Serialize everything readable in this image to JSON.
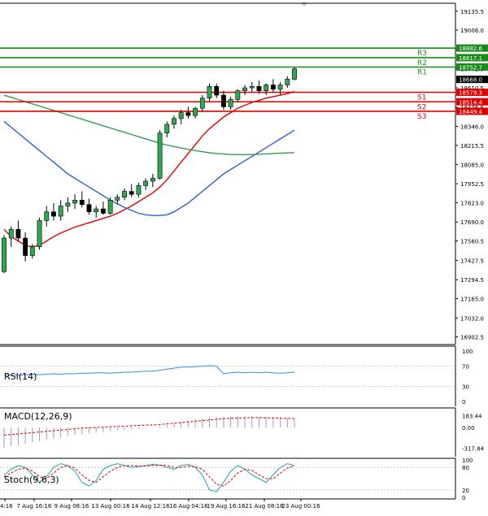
{
  "chart_data": {
    "type": "candlestick",
    "price_panel": {
      "ylim": [
        16850,
        19190
      ],
      "ticks": [
        "19135.5",
        "19006.0",
        "18876.5",
        "18742.5",
        "18610.5",
        "18476.5",
        "18346.0",
        "18215.5",
        "18085.0",
        "17952.5",
        "17823.0",
        "17690.0",
        "17560.5",
        "17427.5",
        "17294.5",
        "17165.0",
        "17032.0",
        "16902.5"
      ],
      "resistance": [
        {
          "name": "R3",
          "value": 18882.6,
          "label": "18882.6"
        },
        {
          "name": "R2",
          "value": 18817.1,
          "label": "18817.1"
        },
        {
          "name": "R1",
          "value": 18752.7,
          "label": "18752.7"
        }
      ],
      "support": [
        {
          "name": "S1",
          "value": 18579.3,
          "label": "18579.3"
        },
        {
          "name": "S2",
          "value": 18514.4,
          "label": "18514.4"
        },
        {
          "name": "S3",
          "value": 18449.4,
          "label": "18449.4"
        }
      ],
      "current_price": {
        "value": 18668.0,
        "label": "18668.0"
      },
      "candles": [
        [
          17350,
          17600,
          17340,
          17580
        ],
        [
          17580,
          17660,
          17520,
          17640
        ],
        [
          17640,
          17700,
          17560,
          17580
        ],
        [
          17580,
          17620,
          17420,
          17460
        ],
        [
          17460,
          17540,
          17440,
          17520
        ],
        [
          17520,
          17720,
          17500,
          17700
        ],
        [
          17700,
          17800,
          17660,
          17760
        ],
        [
          17760,
          17820,
          17700,
          17730
        ],
        [
          17730,
          17840,
          17700,
          17800
        ],
        [
          17800,
          17860,
          17760,
          17820
        ],
        [
          17820,
          17880,
          17780,
          17840
        ],
        [
          17840,
          17900,
          17790,
          17810
        ],
        [
          17810,
          17850,
          17740,
          17760
        ],
        [
          17760,
          17800,
          17720,
          17780
        ],
        [
          17780,
          17830,
          17740,
          17750
        ],
        [
          17750,
          17860,
          17740,
          17840
        ],
        [
          17840,
          17880,
          17810,
          17860
        ],
        [
          17860,
          17920,
          17840,
          17900
        ],
        [
          17900,
          17950,
          17860,
          17880
        ],
        [
          17880,
          17960,
          17860,
          17940
        ],
        [
          17940,
          17990,
          17910,
          17970
        ],
        [
          17970,
          18020,
          17930,
          17990
        ],
        [
          17990,
          18320,
          17980,
          18300
        ],
        [
          18300,
          18380,
          18270,
          18360
        ],
        [
          18360,
          18420,
          18330,
          18400
        ],
        [
          18400,
          18460,
          18360,
          18440
        ],
        [
          18440,
          18480,
          18400,
          18420
        ],
        [
          18420,
          18480,
          18400,
          18470
        ],
        [
          18470,
          18560,
          18450,
          18540
        ],
        [
          18540,
          18640,
          18520,
          18620
        ],
        [
          18620,
          18640,
          18540,
          18560
        ],
        [
          18560,
          18590,
          18460,
          18480
        ],
        [
          18480,
          18550,
          18460,
          18530
        ],
        [
          18530,
          18600,
          18510,
          18590
        ],
        [
          18590,
          18630,
          18560,
          18610
        ],
        [
          18610,
          18650,
          18580,
          18620
        ],
        [
          18620,
          18660,
          18570,
          18590
        ],
        [
          18590,
          18640,
          18560,
          18630
        ],
        [
          18630,
          18670,
          18580,
          18600
        ],
        [
          18600,
          18650,
          18560,
          18630
        ],
        [
          18630,
          18690,
          18610,
          18670
        ],
        [
          18670,
          18750,
          18660,
          18740
        ]
      ],
      "series": [
        {
          "name": "fast",
          "color": "#e00000",
          "values": [
            17640,
            17590,
            17560,
            17530,
            17520,
            17530,
            17560,
            17590,
            17615,
            17635,
            17655,
            17670,
            17685,
            17700,
            17715,
            17730,
            17750,
            17775,
            17800,
            17830,
            17860,
            17890,
            17930,
            17980,
            18040,
            18100,
            18160,
            18220,
            18280,
            18330,
            18370,
            18410,
            18440,
            18470,
            18490,
            18510,
            18525,
            18540,
            18550,
            18560,
            18570,
            18585
          ]
        },
        {
          "name": "mid",
          "color": "#3060d0",
          "values": [
            18380,
            18340,
            18300,
            18260,
            18220,
            18180,
            18140,
            18100,
            18060,
            18020,
            17990,
            17960,
            17930,
            17900,
            17870,
            17840,
            17815,
            17790,
            17770,
            17750,
            17740,
            17735,
            17735,
            17740,
            17760,
            17790,
            17820,
            17860,
            17900,
            17940,
            17980,
            18020,
            18050,
            18080,
            18110,
            18140,
            18170,
            18200,
            18230,
            18260,
            18290,
            18320
          ]
        },
        {
          "name": "slow",
          "color": "#30a050",
          "values": [
            18560,
            18545,
            18530,
            18515,
            18500,
            18485,
            18470,
            18455,
            18440,
            18425,
            18410,
            18395,
            18380,
            18365,
            18350,
            18335,
            18320,
            18305,
            18290,
            18275,
            18260,
            18245,
            18230,
            18218,
            18208,
            18198,
            18188,
            18180,
            18172,
            18165,
            18160,
            18156,
            18153,
            18152,
            18152,
            18153,
            18155,
            18157,
            18160,
            18162,
            18164,
            18166
          ]
        }
      ]
    },
    "x_labels": [
      "4:16",
      "7 Aug 16:16",
      "9 Aug 08:16",
      "13 Aug 00:16",
      "14 Aug 12:16",
      "16 Aug 04:16",
      "19 Aug 16:16",
      "21 Aug 08:16",
      "23 Aug 00:16"
    ],
    "rsi": {
      "label": "RSI(14)",
      "ylim": [
        0,
        100
      ],
      "ticks": [
        "100",
        "70",
        "30",
        "0"
      ],
      "levels": [
        70,
        30
      ],
      "color": "#3090e0",
      "values": [
        53,
        52,
        52,
        53,
        54,
        53,
        54,
        55,
        54,
        55,
        55,
        56,
        56,
        57,
        57,
        56,
        57,
        58,
        58,
        59,
        60,
        60,
        62,
        64,
        66,
        68,
        68,
        69,
        70,
        71,
        70,
        55,
        57,
        58,
        57,
        58,
        57,
        58,
        57,
        56,
        57,
        58
      ]
    },
    "macd": {
      "label": "MACD(12,26,9)",
      "ylim": [
        -400,
        250
      ],
      "ticks": [
        "183.44",
        "0.00",
        "-317.84"
      ],
      "histogram_color": "#a0a0a0",
      "signal_color": "#e00000",
      "histogram": [
        -310,
        -290,
        -270,
        -250,
        -230,
        -210,
        -190,
        -170,
        -150,
        -130,
        -115,
        -100,
        -90,
        -80,
        -70,
        -60,
        -50,
        -40,
        -30,
        -20,
        -10,
        0,
        20,
        40,
        60,
        80,
        100,
        120,
        135,
        150,
        160,
        165,
        168,
        170,
        170,
        168,
        165,
        160,
        155,
        150,
        145,
        140
      ],
      "signal": [
        -120,
        -110,
        -100,
        -90,
        -80,
        -70,
        -60,
        -50,
        -40,
        -30,
        -20,
        -10,
        -5,
        0,
        5,
        10,
        15,
        20,
        25,
        30,
        35,
        40,
        45,
        55,
        65,
        75,
        85,
        95,
        105,
        115,
        125,
        135,
        140,
        145,
        148,
        150,
        150,
        148,
        145,
        142,
        139,
        136
      ]
    },
    "stoch": {
      "label": "Stoch(9,6,3)",
      "ylim": [
        0,
        100
      ],
      "ticks": [
        "100",
        "80",
        "20",
        "0"
      ],
      "levels": [
        80,
        20
      ],
      "main_color": "#20a0b0",
      "signal_color": "#e00000",
      "main": [
        60,
        75,
        85,
        80,
        60,
        40,
        55,
        80,
        90,
        85,
        70,
        40,
        30,
        45,
        75,
        85,
        90,
        85,
        80,
        82,
        85,
        88,
        86,
        80,
        75,
        85,
        88,
        80,
        60,
        20,
        15,
        40,
        70,
        85,
        75,
        60,
        50,
        40,
        60,
        80,
        90,
        85
      ],
      "signal": [
        55,
        65,
        75,
        78,
        70,
        55,
        50,
        65,
        80,
        85,
        78,
        60,
        45,
        40,
        55,
        70,
        80,
        85,
        85,
        83,
        84,
        85,
        86,
        85,
        80,
        80,
        83,
        82,
        75,
        55,
        35,
        30,
        45,
        65,
        75,
        72,
        60,
        50,
        50,
        65,
        78,
        85
      ]
    }
  }
}
